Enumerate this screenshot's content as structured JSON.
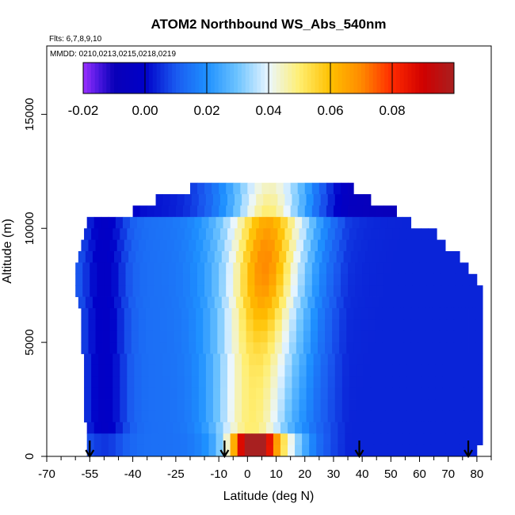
{
  "chart_data": {
    "type": "heatmap",
    "title": "ATOM2 Northbound WS_Abs_540nm",
    "subtitle_flights": "Flts: 6,7,8,9,10",
    "subtitle_dates": "MMDD: 0210,0213,0215,0218,0219",
    "xlabel": "Latitude (deg N)",
    "ylabel": "Altitude (m)",
    "xlim": [
      -70,
      85
    ],
    "ylim": [
      0,
      18000
    ],
    "x_ticks": [
      -70,
      -55,
      -40,
      -25,
      -10,
      0,
      10,
      20,
      30,
      40,
      50,
      60,
      70,
      80
    ],
    "x_tick_labels": [
      "-70",
      "-55",
      "-40",
      "-25",
      "-10",
      "0",
      "10",
      "20",
      "30",
      "40",
      "50",
      "60",
      "70",
      "80"
    ],
    "y_ticks": [
      0,
      5000,
      10000,
      15000
    ],
    "y_tick_labels": [
      "0",
      "5000",
      "10000",
      "15000"
    ],
    "colorbar": {
      "min": -0.02,
      "max": 0.1,
      "ticks": [
        -0.02,
        0.0,
        0.02,
        0.04,
        0.06,
        0.08
      ],
      "tick_labels": [
        "-0.02",
        "0.00",
        "0.02",
        "0.04",
        "0.06",
        "0.08"
      ],
      "stops": [
        {
          "v": -0.02,
          "color": "#9b30ff"
        },
        {
          "v": -0.015,
          "color": "#4b17e0"
        },
        {
          "v": -0.01,
          "color": "#0a00b8"
        },
        {
          "v": 0.0,
          "color": "#0000c8"
        },
        {
          "v": 0.01,
          "color": "#1a5af0"
        },
        {
          "v": 0.02,
          "color": "#1e90ff"
        },
        {
          "v": 0.03,
          "color": "#6ec4ff"
        },
        {
          "v": 0.04,
          "color": "#eaf6ff"
        },
        {
          "v": 0.05,
          "color": "#ffee70"
        },
        {
          "v": 0.06,
          "color": "#ffc000"
        },
        {
          "v": 0.07,
          "color": "#ff8a00"
        },
        {
          "v": 0.08,
          "color": "#ff2a00"
        },
        {
          "v": 0.09,
          "color": "#d00000"
        },
        {
          "v": 0.1,
          "color": "#a82020"
        }
      ]
    },
    "profile_arrows_lat": [
      -55,
      -8,
      39,
      77
    ],
    "altitude_bands": [
      {
        "alt": 11750,
        "lat_min": -20,
        "lat_max": 37
      },
      {
        "alt": 11250,
        "lat_min": -32,
        "lat_max": 43
      },
      {
        "alt": 10750,
        "lat_min": -40,
        "lat_max": 52
      },
      {
        "alt": 10250,
        "lat_min": -56,
        "lat_max": 57
      },
      {
        "alt": 9750,
        "lat_min": -57,
        "lat_max": 66
      },
      {
        "alt": 9250,
        "lat_min": -58,
        "lat_max": 69
      },
      {
        "alt": 8750,
        "lat_min": -59,
        "lat_max": 74
      },
      {
        "alt": 8250,
        "lat_min": -60,
        "lat_max": 77
      },
      {
        "alt": 7750,
        "lat_min": -60,
        "lat_max": 80
      },
      {
        "alt": 7250,
        "lat_min": -60,
        "lat_max": 82
      },
      {
        "alt": 6750,
        "lat_min": -59,
        "lat_max": 82
      },
      {
        "alt": 6250,
        "lat_min": -58,
        "lat_max": 82
      },
      {
        "alt": 5750,
        "lat_min": -58,
        "lat_max": 82
      },
      {
        "alt": 5250,
        "lat_min": -58,
        "lat_max": 82
      },
      {
        "alt": 4750,
        "lat_min": -58,
        "lat_max": 82
      },
      {
        "alt": 4250,
        "lat_min": -57,
        "lat_max": 82
      },
      {
        "alt": 3750,
        "lat_min": -57,
        "lat_max": 82
      },
      {
        "alt": 3250,
        "lat_min": -57,
        "lat_max": 82
      },
      {
        "alt": 2750,
        "lat_min": -57,
        "lat_max": 82
      },
      {
        "alt": 2250,
        "lat_min": -57,
        "lat_max": 82
      },
      {
        "alt": 1750,
        "lat_min": -57,
        "lat_max": 82
      },
      {
        "alt": 1250,
        "lat_min": -56,
        "lat_max": 82
      },
      {
        "alt": 750,
        "lat_min": -56,
        "lat_max": 82
      },
      {
        "alt": 250,
        "lat_min": -56,
        "lat_max": 80
      }
    ]
  }
}
